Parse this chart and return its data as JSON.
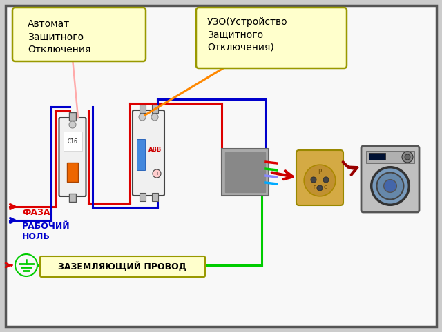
{
  "bg_outer": "#cccccc",
  "bg_inner": "#f8f8f8",
  "border_color": "#555555",
  "faza_color": "#dd0000",
  "nol_color": "#0000cc",
  "ground_color": "#00cc00",
  "orange_color": "#ff8800",
  "red_arrow_color": "#cc0000",
  "dark_red_arrow": "#990000",
  "box_fill": "#ffffcc",
  "box_border": "#999900",
  "label_faza": "ФАЗА",
  "label_nol": "РАБОЧИЙ\nНОЛЬ",
  "label_ground": "ЗАЗЕМЛЯЮЩИЙ ПРОВОД",
  "label_avtomat": "Автомат\nЗащитного\nОтключения",
  "label_uzo": "УЗО(Устройство\nЗащитного\nОтключения)",
  "lw": 2.2,
  "img_border": "#666666"
}
